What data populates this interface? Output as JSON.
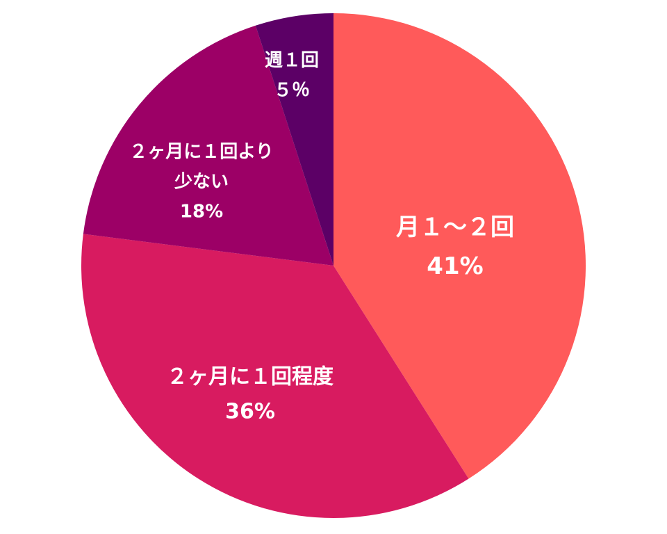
{
  "chart_data": {
    "type": "pie",
    "categories": [
      "月１～２回",
      "２ヶ月に１回程度",
      "２ヶ月に１回より\n少ない",
      "週１回"
    ],
    "values": [
      41,
      36,
      18,
      5
    ],
    "value_labels": [
      "41%",
      "36%",
      "18%",
      "５％"
    ],
    "colors": [
      "#ff5a5a",
      "#d81b60",
      "#9c0066",
      "#5c0066"
    ]
  }
}
